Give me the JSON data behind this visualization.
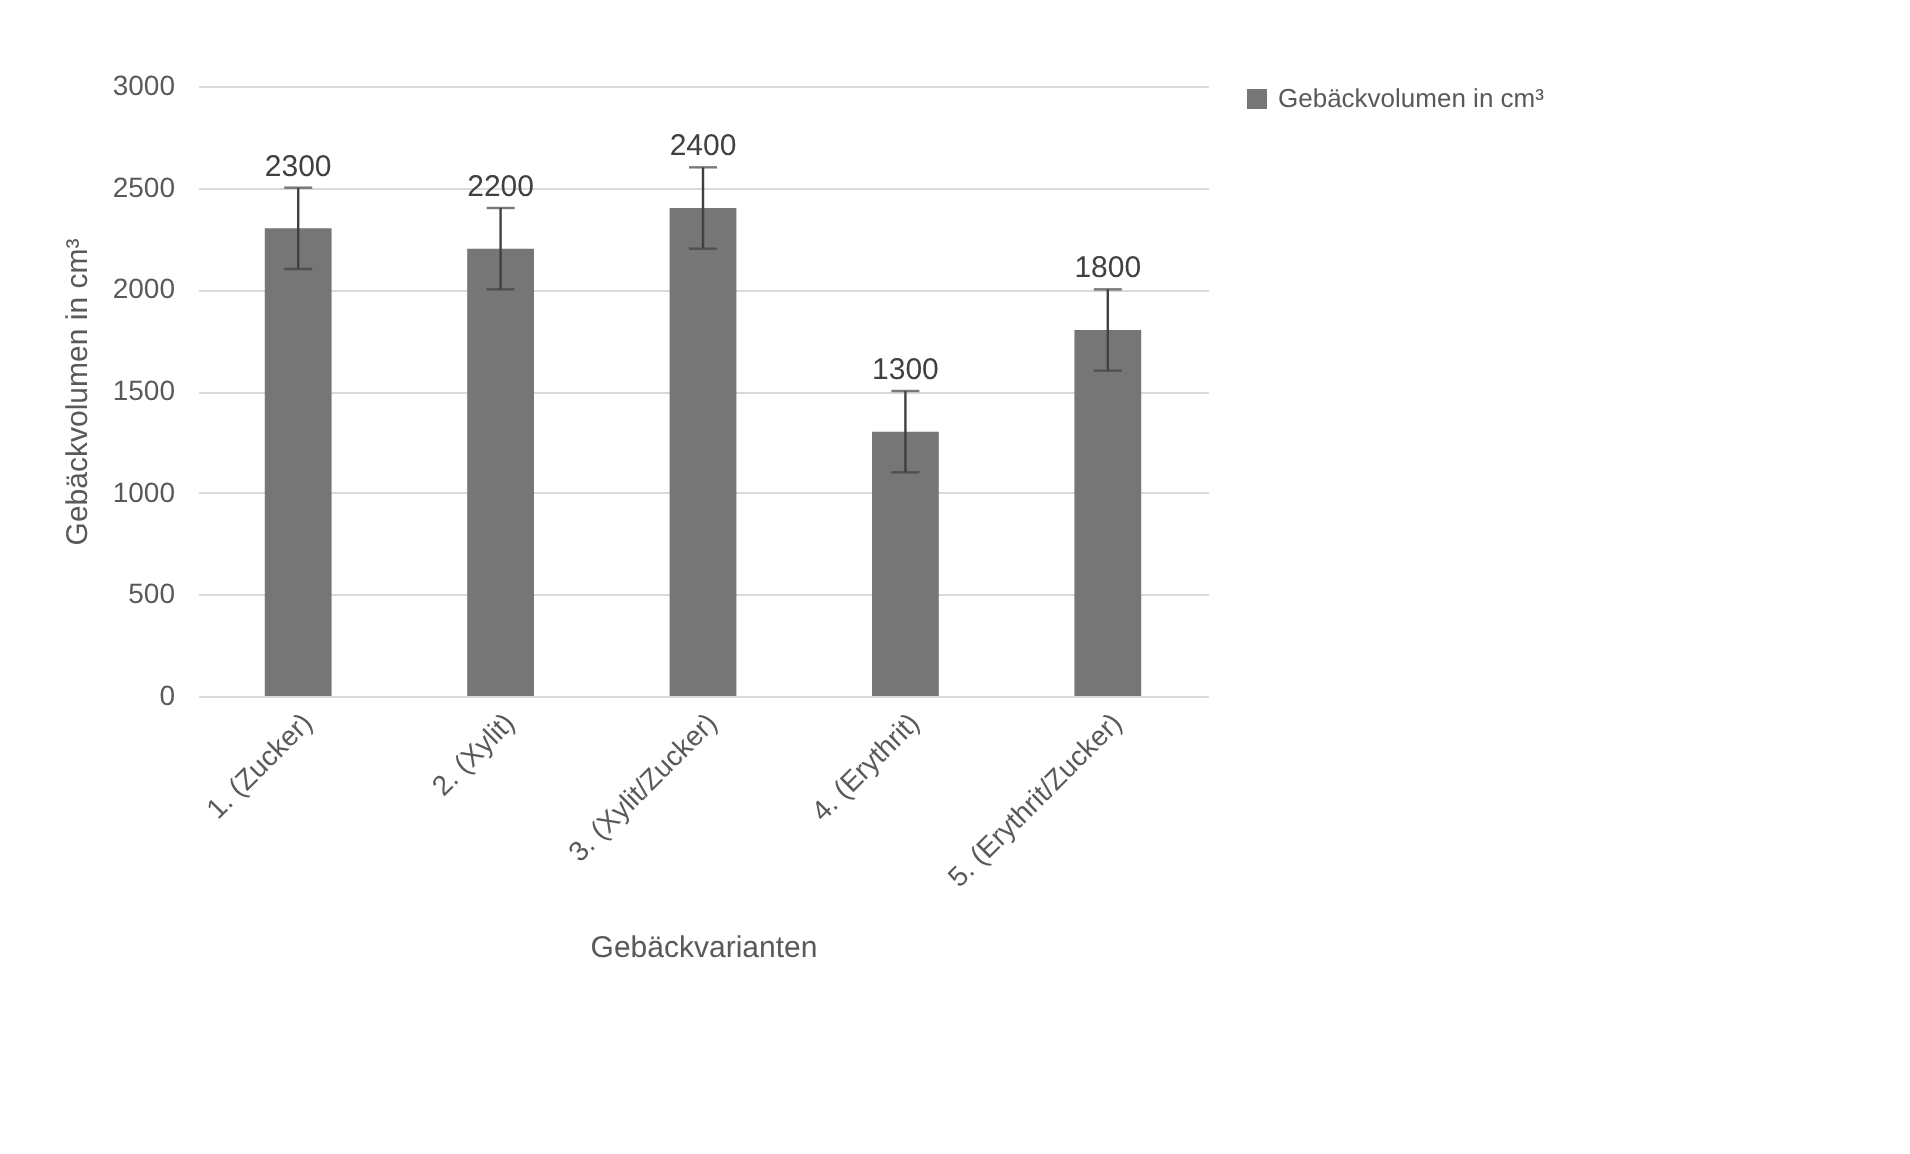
{
  "chart_data": {
    "type": "bar",
    "xlabel": "Gebäckvarianten",
    "ylabel": "Gebäckvolumen in cm³",
    "categories": [
      "1. (Zucker)",
      "2. (Xylit)",
      "3. (Xylit/Zucker)",
      "4. (Erythrit)",
      "5. (Erythrit/Zucker)"
    ],
    "series": [
      {
        "name": "Gebäckvolumen in cm³",
        "color": "#767676",
        "values": [
          2300,
          2200,
          2400,
          1300,
          1800
        ],
        "errors": [
          200,
          200,
          200,
          200,
          200
        ]
      }
    ],
    "ylim": [
      0,
      3000
    ],
    "yticks": [
      0,
      500,
      1000,
      1500,
      2000,
      2500,
      3000
    ],
    "grid": "y",
    "legend": "right",
    "data_labels": true
  }
}
